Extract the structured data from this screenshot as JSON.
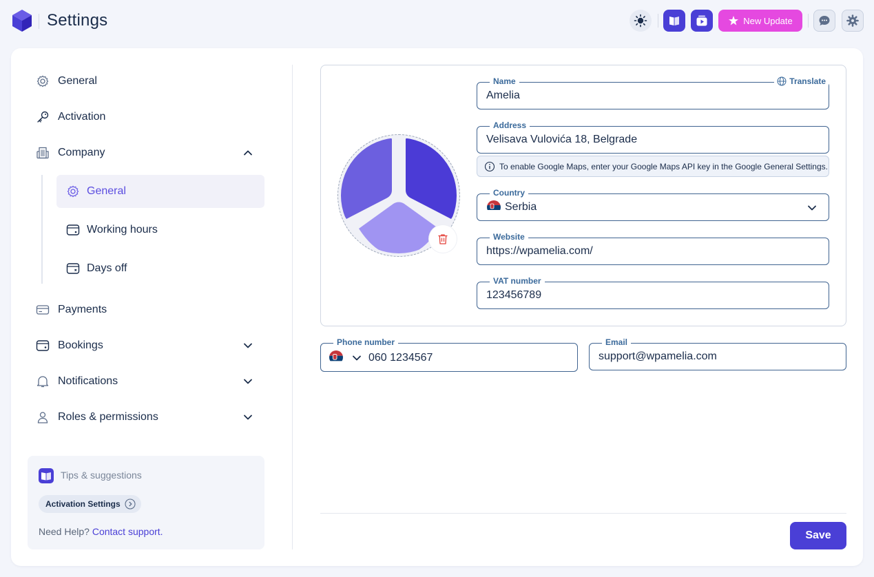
{
  "header": {
    "title": "Settings",
    "update_label": "New Update"
  },
  "sidebar": {
    "items": [
      {
        "label": "General"
      },
      {
        "label": "Activation"
      },
      {
        "label": "Company"
      },
      {
        "label": "Payments"
      },
      {
        "label": "Bookings"
      },
      {
        "label": "Notifications"
      },
      {
        "label": "Roles & permissions"
      }
    ],
    "company_sub": [
      {
        "label": "General"
      },
      {
        "label": "Working hours"
      },
      {
        "label": "Days off"
      }
    ],
    "tips": {
      "title": "Tips & suggestions",
      "chip": "Activation Settings",
      "help_prefix": "Need Help?",
      "help_link": "Contact support."
    }
  },
  "form": {
    "name": {
      "label": "Name",
      "value": "Amelia",
      "translate": "Translate"
    },
    "address": {
      "label": "Address",
      "value": "Velisava Vulovića 18, Belgrade"
    },
    "maps_note": "To enable Google Maps, enter your Google Maps API key in the Google General Settings.",
    "country": {
      "label": "Country",
      "value": "Serbia"
    },
    "website": {
      "label": "Website",
      "value": "https://wpamelia.com/"
    },
    "vat": {
      "label": "VAT number",
      "value": "123456789"
    },
    "phone": {
      "label": "Phone number",
      "value": "060 1234567"
    },
    "email": {
      "label": "Email",
      "value": "support@wpamelia.com"
    },
    "save_label": "Save"
  },
  "colors": {
    "accent": "#4a3fd6",
    "update": "#e549e0",
    "field_border": "#3f6390"
  }
}
